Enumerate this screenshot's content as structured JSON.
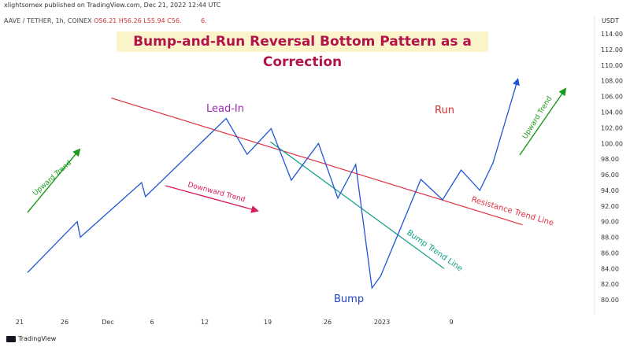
{
  "header": {
    "publisher": "xlightsomex published on TradingView.com, Dec 21, 2022 12:44 UTC",
    "symbol": "AAVE / TETHER, 1h, COINEX",
    "ohlc": "O56.21 H56.26 L55.94 C56.",
    "ohlc_suffix": "6."
  },
  "title": "Bump-and-Run Reversal Bottom Pattern as a Correction",
  "currency": "USDT",
  "footer": "TradingView",
  "colors": {
    "price": "#1f55d6",
    "resistance": "#e03040",
    "bump_line": "#0a9d86",
    "trend_up": "#1a9a1a",
    "downward": "#d81b60",
    "lead_in": "#9c27b0",
    "run": "#d32f2f",
    "bump_label": "#1e40c8"
  },
  "chart_data": {
    "type": "line",
    "title": "Bump-and-Run Reversal Bottom Pattern as a Correction",
    "ylim": [
      79,
      115.5
    ],
    "y_ticks": [
      "80.00",
      "82.00",
      "84.00",
      "86.00",
      "88.00",
      "90.00",
      "92.00",
      "94.00",
      "96.00",
      "98.00",
      "100.00",
      "102.00",
      "104.00",
      "106.00",
      "108.00",
      "110.00",
      "112.00",
      "114.00"
    ],
    "x_ticks": [
      "21",
      "26",
      "Dec",
      "6",
      "12",
      "19",
      "26",
      "2023",
      "9"
    ],
    "series": [
      {
        "x": [
          0.0,
          6.4,
          6.8,
          14.7,
          15.2,
          25.6,
          28.3,
          31.4,
          34.0,
          37.5,
          40.0,
          42.3,
          44.4,
          45.5,
          50.7,
          53.5,
          55.9,
          58.3,
          60.0,
          63.2
        ],
        "y": [
          83.5,
          90.0,
          88.0,
          95.0,
          93.2,
          103.2,
          98.6,
          101.9,
          95.3,
          100.0,
          93.0,
          97.3,
          81.5,
          83.0,
          95.4,
          92.8,
          96.6,
          94.0,
          97.5,
          108.2
        ]
      }
    ],
    "lines": [
      {
        "name": "Resistance Trend Line",
        "x": [
          10.8,
          63.8
        ],
        "y": [
          105.8,
          89.6
        ]
      },
      {
        "name": "Bump Trend Line",
        "x": [
          31.3,
          53.7
        ],
        "y": [
          100.2,
          84.0
        ]
      }
    ],
    "annotations": {
      "lead_in": "Lead-In",
      "run": "Run",
      "bump": "Bump",
      "upward_trend_left": "Upward Trend",
      "upward_trend_right": "Upward Trend",
      "downward_trend": "Downward Trend",
      "resistance_line": "Resistance Trend Line",
      "bump_line": "Bump Trend Line"
    }
  }
}
